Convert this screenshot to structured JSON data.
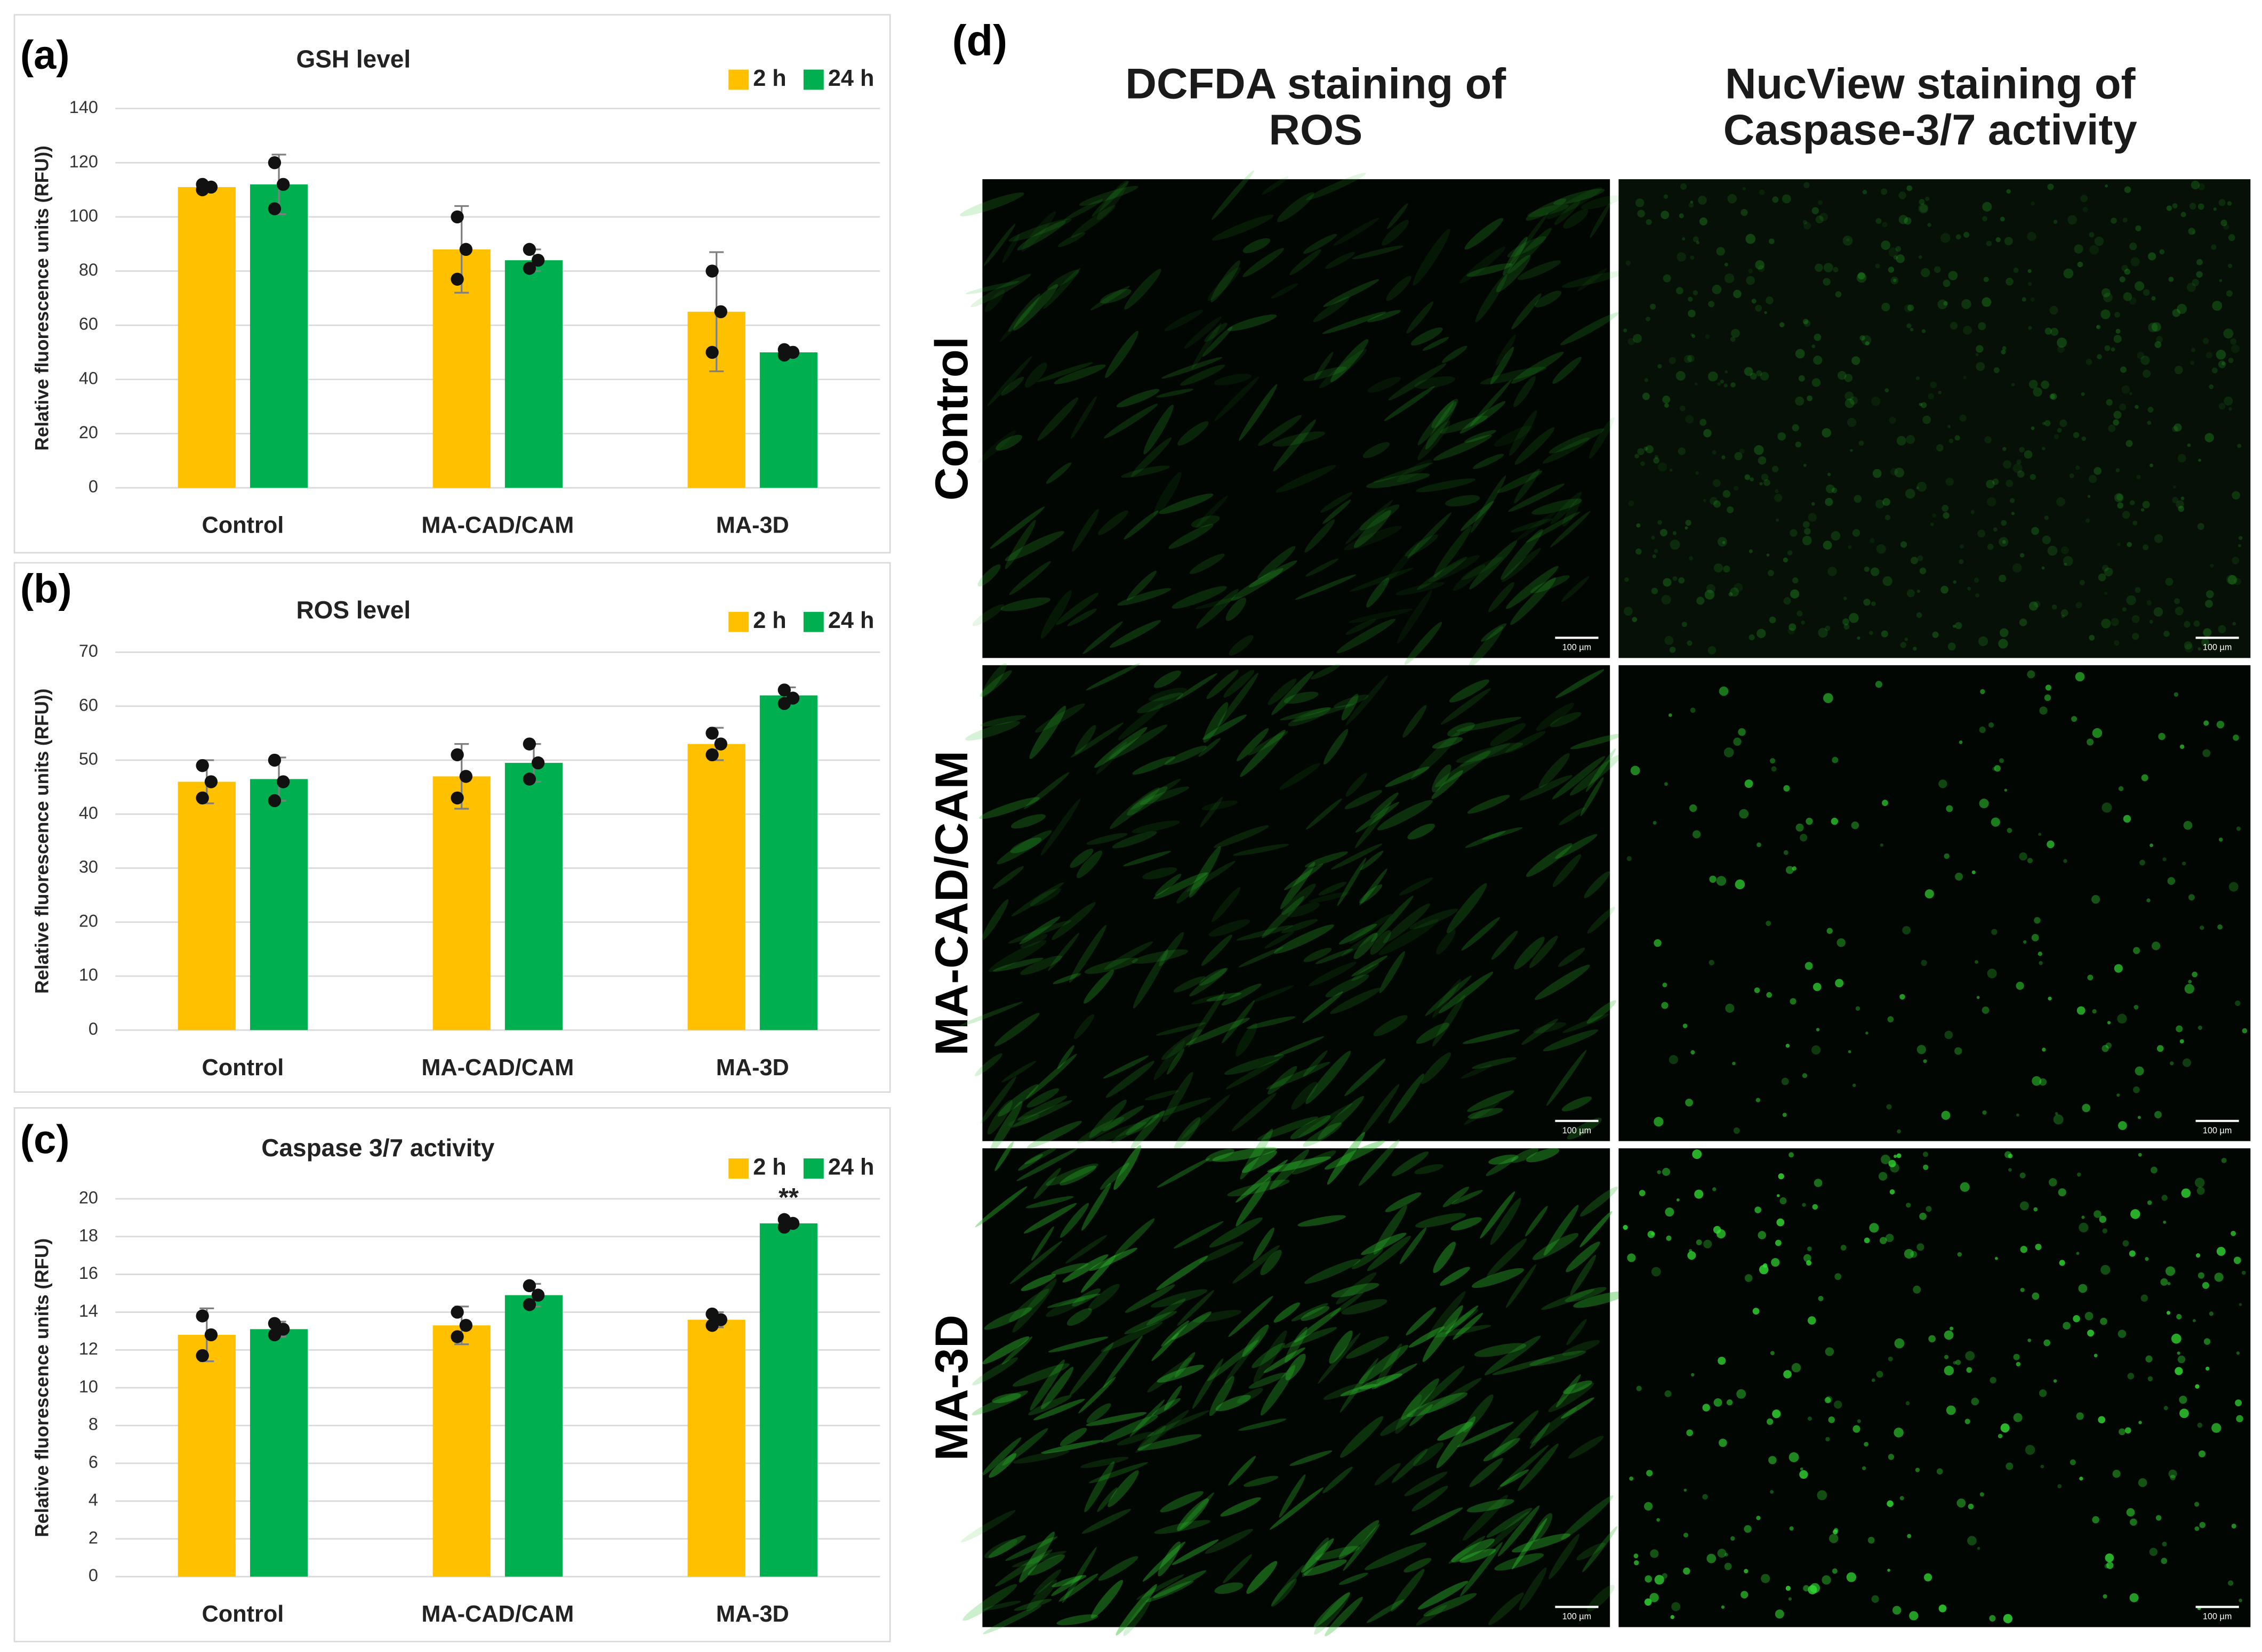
{
  "chart_data": [
    {
      "type": "bar",
      "panel_label": "(a)",
      "title": "GSH level",
      "y_label": "Relative fluorescence units (RFU))",
      "categories": [
        "Control",
        "MA-CAD/CAM",
        "MA-3D"
      ],
      "series": [
        {
          "name": "2 h",
          "color": "#FFC000",
          "values": [
            111,
            88,
            65
          ],
          "errors": [
            1,
            16,
            22
          ],
          "points": [
            [
              110,
              111,
              112
            ],
            [
              77,
              88,
              100
            ],
            [
              50,
              65,
              80
            ]
          ]
        },
        {
          "name": "24 h",
          "color": "#00B050",
          "values": [
            112,
            84,
            50
          ],
          "errors": [
            11,
            4,
            2
          ],
          "points": [
            [
              103,
              112,
              120
            ],
            [
              81,
              84,
              88
            ],
            [
              49,
              50,
              51
            ]
          ]
        }
      ],
      "ylim": [
        0,
        140
      ],
      "yticks": [
        0,
        20,
        40,
        60,
        80,
        100,
        120,
        140
      ],
      "grid": true
    },
    {
      "type": "bar",
      "panel_label": "(b)",
      "title": "ROS level",
      "y_label": "Relative fluorescence units (RFU))",
      "categories": [
        "Control",
        "MA-CAD/CAM",
        "MA-3D"
      ],
      "series": [
        {
          "name": "2 h",
          "color": "#FFC000",
          "values": [
            46,
            47,
            53
          ],
          "errors": [
            4,
            6,
            3
          ],
          "points": [
            [
              43,
              46,
              49
            ],
            [
              43,
              47,
              51
            ],
            [
              51,
              53,
              55
            ]
          ]
        },
        {
          "name": "24 h",
          "color": "#00B050",
          "values": [
            46.5,
            49.5,
            62
          ],
          "errors": [
            4,
            3.5,
            1.5
          ],
          "points": [
            [
              42.5,
              46,
              50
            ],
            [
              46.5,
              49.5,
              53
            ],
            [
              60.5,
              61.5,
              63
            ]
          ]
        }
      ],
      "ylim": [
        0,
        70
      ],
      "yticks": [
        0,
        10,
        20,
        30,
        40,
        50,
        60,
        70
      ],
      "grid": true
    },
    {
      "type": "bar",
      "panel_label": "(c)",
      "title": "Caspase 3/7 activity",
      "y_label": "Relative fluorescence units (RFU)",
      "categories": [
        "Control",
        "MA-CAD/CAM",
        "MA-3D"
      ],
      "series": [
        {
          "name": "2 h",
          "color": "#FFC000",
          "values": [
            12.8,
            13.3,
            13.6
          ],
          "errors": [
            1.4,
            1,
            0.4
          ],
          "points": [
            [
              11.7,
              12.8,
              13.8
            ],
            [
              12.7,
              13.3,
              14
            ],
            [
              13.3,
              13.6,
              13.9
            ]
          ]
        },
        {
          "name": "24 h",
          "color": "#00B050",
          "values": [
            13.1,
            14.9,
            18.7
          ],
          "errors": [
            0.4,
            0.6,
            0.2
          ],
          "points": [
            [
              12.8,
              13.1,
              13.4
            ],
            [
              14.4,
              14.9,
              15.4
            ],
            [
              18.5,
              18.7,
              18.9
            ]
          ],
          "value_annotations": [
            null,
            null,
            "**"
          ]
        }
      ],
      "ylim": [
        0,
        20
      ],
      "yticks": [
        0,
        2,
        4,
        6,
        8,
        10,
        12,
        14,
        16,
        18,
        20
      ],
      "grid": true
    }
  ],
  "panel_d": {
    "label": "(d)",
    "column_headers": [
      [
        "DCFDA staining of",
        "ROS"
      ],
      [
        "NucView staining of",
        "Caspase-3/7 activity"
      ]
    ],
    "row_labels": [
      "Control",
      "MA-CAD/CAM",
      "MA-3D"
    ],
    "scale_bar": "100 µm"
  }
}
